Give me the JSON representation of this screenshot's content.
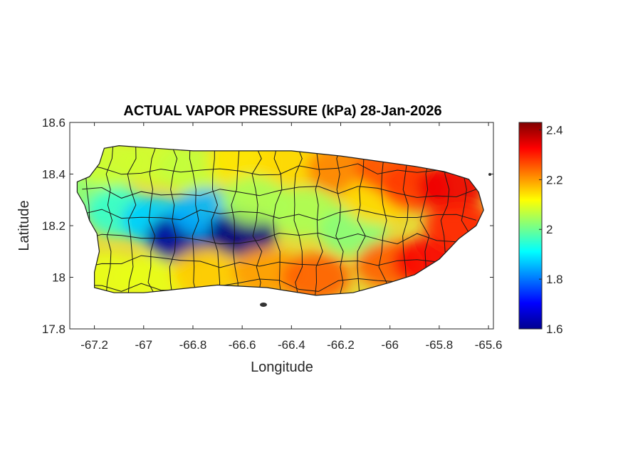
{
  "chart_data": {
    "type": "heatmap",
    "title": "ACTUAL VAPOR PRESSURE (kPa) 28-Jan-2026",
    "xlabel": "Longitude",
    "ylabel": "Latitude",
    "xlim": [
      -67.3,
      -65.58
    ],
    "ylim": [
      17.8,
      18.6
    ],
    "xticks": [
      -67.2,
      -67,
      -66.8,
      -66.6,
      -66.4,
      -66.2,
      -66,
      -65.8,
      -65.6
    ],
    "yticks": [
      17.8,
      18,
      18.2,
      18.4,
      18.6
    ],
    "xtick_labels": [
      "-67.2",
      "-67",
      "-66.8",
      "-66.6",
      "-66.4",
      "-66.2",
      "-66",
      "-65.8",
      "-65.6"
    ],
    "ytick_labels": [
      "17.8",
      "18",
      "18.2",
      "18.4",
      "18.6"
    ],
    "colorbar": {
      "colormap": "jet",
      "range": [
        1.6,
        2.43
      ],
      "ticks": [
        1.6,
        1.8,
        2,
        2.2,
        2.4
      ],
      "tick_labels": [
        "1.6",
        "1.8",
        "2",
        "2.2",
        "2.4"
      ]
    },
    "grid": false,
    "island_outline": [
      [
        -67.27,
        18.37
      ],
      [
        -67.22,
        18.39
      ],
      [
        -67.18,
        18.44
      ],
      [
        -67.16,
        18.5
      ],
      [
        -67.1,
        18.51
      ],
      [
        -66.95,
        18.5
      ],
      [
        -66.8,
        18.49
      ],
      [
        -66.6,
        18.49
      ],
      [
        -66.4,
        18.49
      ],
      [
        -66.2,
        18.47
      ],
      [
        -66.05,
        18.45
      ],
      [
        -65.9,
        18.43
      ],
      [
        -65.78,
        18.41
      ],
      [
        -65.68,
        18.38
      ],
      [
        -65.64,
        18.33
      ],
      [
        -65.62,
        18.26
      ],
      [
        -65.65,
        18.2
      ],
      [
        -65.72,
        18.15
      ],
      [
        -65.8,
        18.07
      ],
      [
        -65.9,
        18.01
      ],
      [
        -66.0,
        17.98
      ],
      [
        -66.15,
        17.94
      ],
      [
        -66.3,
        17.93
      ],
      [
        -66.5,
        17.96
      ],
      [
        -66.7,
        17.97
      ],
      [
        -66.9,
        17.95
      ],
      [
        -67.0,
        17.94
      ],
      [
        -67.12,
        17.94
      ],
      [
        -67.2,
        17.96
      ],
      [
        -67.2,
        18.02
      ],
      [
        -67.18,
        18.1
      ],
      [
        -67.19,
        18.17
      ],
      [
        -67.22,
        18.22
      ],
      [
        -67.24,
        18.28
      ],
      [
        -67.27,
        18.33
      ]
    ],
    "field_samples": [
      {
        "lon": -67.2,
        "lat": 18.35,
        "value": 2.02
      },
      {
        "lon": -67.15,
        "lat": 18.45,
        "value": 2.08
      },
      {
        "lon": -67.15,
        "lat": 18.0,
        "value": 2.1
      },
      {
        "lon": -67.1,
        "lat": 18.25,
        "value": 1.95
      },
      {
        "lon": -66.95,
        "lat": 18.45,
        "value": 2.08
      },
      {
        "lon": -66.95,
        "lat": 18.22,
        "value": 1.87
      },
      {
        "lon": -66.95,
        "lat": 18.0,
        "value": 2.1
      },
      {
        "lon": -66.85,
        "lat": 18.15,
        "value": 1.62
      },
      {
        "lon": -66.8,
        "lat": 18.42,
        "value": 2.07
      },
      {
        "lon": -66.75,
        "lat": 18.25,
        "value": 1.85
      },
      {
        "lon": -66.75,
        "lat": 18.02,
        "value": 2.16
      },
      {
        "lon": -66.6,
        "lat": 18.17,
        "value": 1.6
      },
      {
        "lon": -66.6,
        "lat": 18.45,
        "value": 2.14
      },
      {
        "lon": -66.55,
        "lat": 18.3,
        "value": 2.05
      },
      {
        "lon": -66.5,
        "lat": 18.02,
        "value": 2.2
      },
      {
        "lon": -66.4,
        "lat": 18.45,
        "value": 2.15
      },
      {
        "lon": -66.35,
        "lat": 18.25,
        "value": 2.05
      },
      {
        "lon": -66.3,
        "lat": 18.0,
        "value": 2.25
      },
      {
        "lon": -66.2,
        "lat": 18.42,
        "value": 2.22
      },
      {
        "lon": -66.15,
        "lat": 18.18,
        "value": 2.02
      },
      {
        "lon": -66.05,
        "lat": 18.3,
        "value": 2.15
      },
      {
        "lon": -66.0,
        "lat": 18.42,
        "value": 2.26
      },
      {
        "lon": -66.0,
        "lat": 18.05,
        "value": 2.25
      },
      {
        "lon": -65.9,
        "lat": 18.35,
        "value": 2.28
      },
      {
        "lon": -65.85,
        "lat": 18.06,
        "value": 2.33
      },
      {
        "lon": -65.75,
        "lat": 18.35,
        "value": 2.34
      },
      {
        "lon": -65.72,
        "lat": 18.2,
        "value": 2.3
      }
    ]
  }
}
